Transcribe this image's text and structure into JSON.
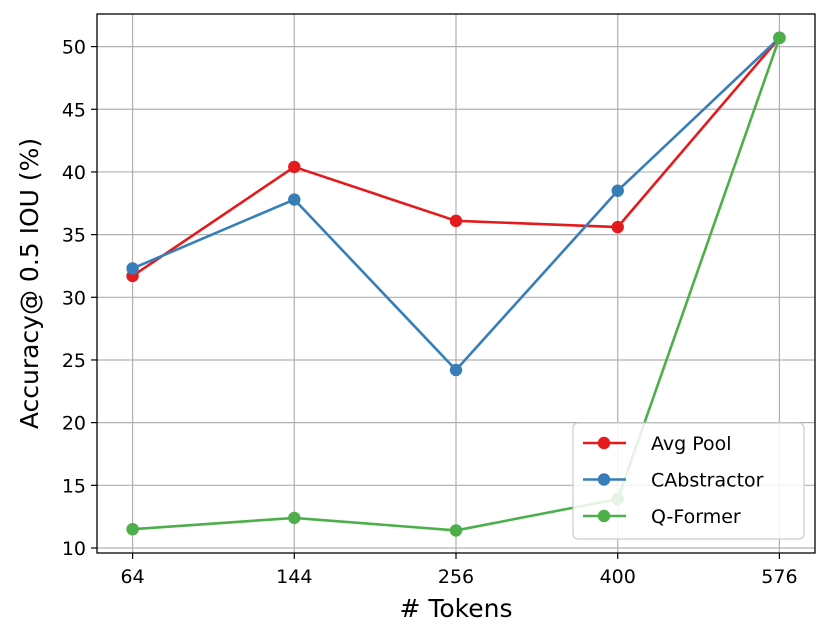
{
  "chart_data": {
    "type": "line",
    "title": "",
    "xlabel": "# Tokens",
    "ylabel": "Accuracy@ 0.5 IOU (%)",
    "x": [
      64,
      144,
      256,
      400,
      576
    ],
    "x_tick_labels": [
      "64",
      "144",
      "256",
      "400",
      "576"
    ],
    "y_ticks": [
      10,
      15,
      20,
      25,
      30,
      35,
      40,
      45,
      50
    ],
    "y_tick_labels": [
      "10",
      "15",
      "20",
      "25",
      "30",
      "35",
      "40",
      "45",
      "50"
    ],
    "ylim": [
      9.6,
      52.6
    ],
    "grid": true,
    "legend_position": "lower-right",
    "series": [
      {
        "name": "Avg Pool",
        "color": "#e41a1c",
        "values": [
          31.7,
          40.4,
          36.1,
          35.6,
          50.7
        ]
      },
      {
        "name": "CAbstractor",
        "color": "#377eb8",
        "values": [
          32.3,
          37.8,
          24.2,
          38.5,
          50.7
        ]
      },
      {
        "name": "Q-Former",
        "color": "#4daf4a",
        "values": [
          11.5,
          12.4,
          11.4,
          13.9,
          50.7
        ]
      }
    ]
  }
}
